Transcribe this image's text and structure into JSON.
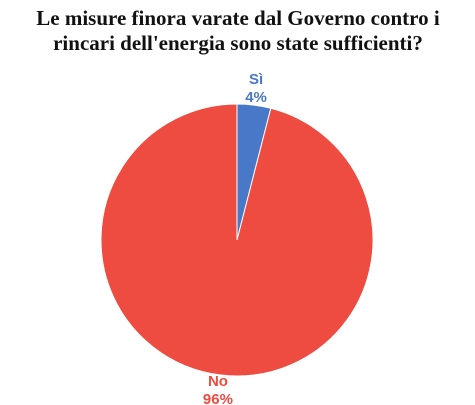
{
  "chart_data": {
    "type": "pie",
    "title": "Le misure finora varate dal Governo contro i rincari dell'energia sono state sufficienti?",
    "categories": [
      "Sì",
      "No"
    ],
    "values": [
      4,
      96
    ],
    "value_labels": [
      "4%",
      "96%"
    ],
    "colors": [
      "#4a78c8",
      "#ee4b41"
    ]
  }
}
